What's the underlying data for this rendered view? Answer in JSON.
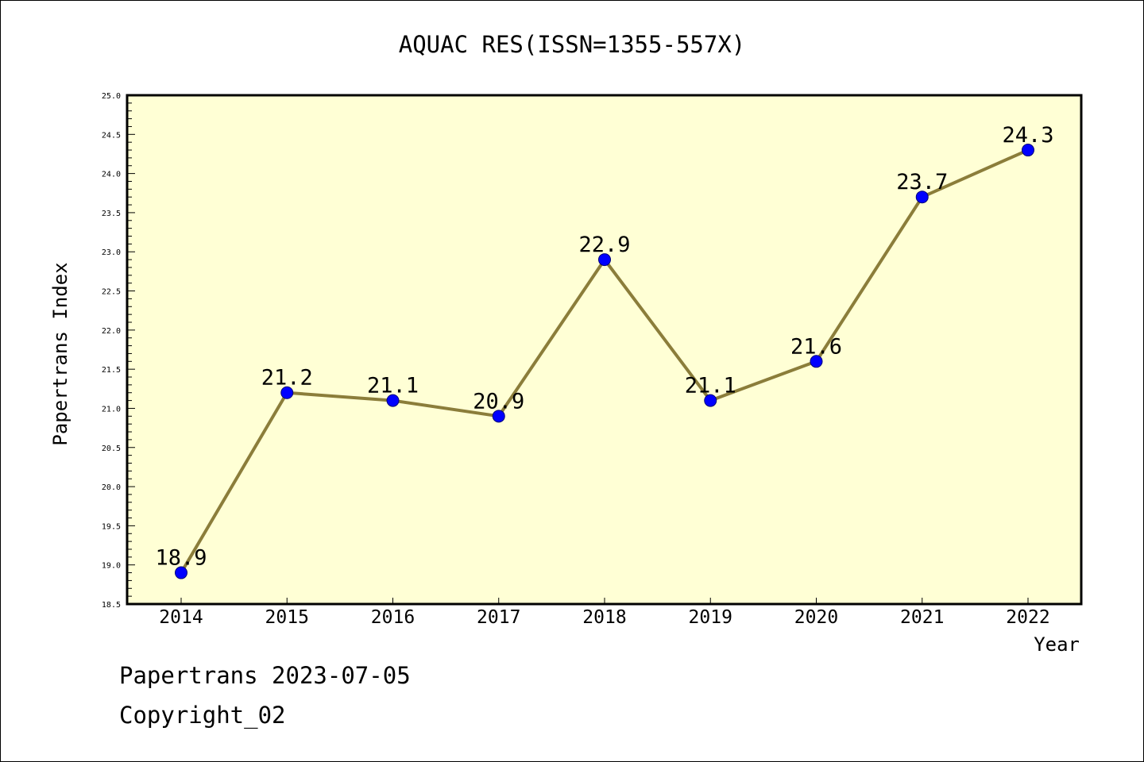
{
  "chart_data": {
    "type": "line",
    "title": "AQUAC RES(ISSN=1355-557X)",
    "xlabel": "Year",
    "ylabel": "Papertrans Index",
    "categories": [
      "2014",
      "2015",
      "2016",
      "2017",
      "2018",
      "2019",
      "2020",
      "2021",
      "2022"
    ],
    "series": [
      {
        "values": [
          18.9,
          21.2,
          21.1,
          20.9,
          22.9,
          21.1,
          21.6,
          23.7,
          24.3
        ]
      }
    ],
    "data_labels": [
      "18.9",
      "21.2",
      "21.1",
      "20.9",
      "22.9",
      "21.1",
      "21.6",
      "23.7",
      "24.3"
    ],
    "ylim": [
      18.5,
      25.0
    ],
    "yticks": [
      "18.5",
      "19.0",
      "19.5",
      "20.0",
      "20.5",
      "21.0",
      "21.5",
      "22.0",
      "22.5",
      "23.0",
      "23.5",
      "24.0",
      "24.5",
      "25.0"
    ],
    "grid": false,
    "legend": "none",
    "colors": {
      "plot_background": "#ffffd5",
      "line": "#8b7d3a",
      "marker": "#0000ff",
      "axis": "#000000"
    }
  },
  "footer": {
    "line1": "Papertrans 2023-07-05",
    "line2": "Copyright_02"
  }
}
